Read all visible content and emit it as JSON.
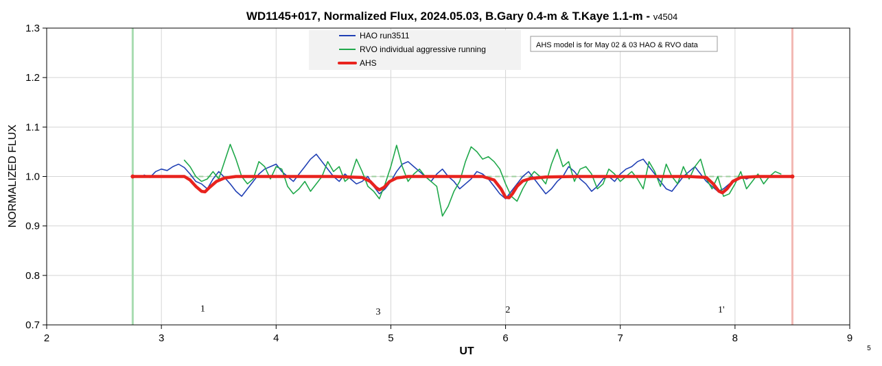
{
  "chart_data": {
    "type": "line",
    "title": "WD1145+017, Normalized Flux, 2024.05.03, B.Gary 0.4-m & T.Kaye 1.1-m - ",
    "title_version": "v4504",
    "xlabel": "UT",
    "ylabel": "NORMALIZED FLUX",
    "xlim": [
      2,
      9
    ],
    "ylim": [
      0.7,
      1.3
    ],
    "x_ticks": [
      "2",
      "3",
      "4",
      "5",
      "6",
      "7",
      "8",
      "9"
    ],
    "y_ticks": [
      "0.7",
      "0.8",
      "0.9",
      "1.0",
      "1.1",
      "1.2",
      "1.3"
    ],
    "grid": true,
    "legend_position": "top-center",
    "note": "AHS model is for May 02 & 03 HAO & RVO data",
    "corner_label": "5",
    "vertical_markers": [
      {
        "x": 2.75,
        "color": "#a8dcb0"
      },
      {
        "x": 8.5,
        "color": "#f2b8b4"
      }
    ],
    "reference_line": {
      "y": 1.0,
      "color": "#9ecf9e"
    },
    "annotations": [
      {
        "text": "1",
        "x": 3.36,
        "y": 0.727
      },
      {
        "text": "3",
        "x": 4.89,
        "y": 0.721
      },
      {
        "text": "2",
        "x": 6.02,
        "y": 0.725
      },
      {
        "text": "1'",
        "x": 7.88,
        "y": 0.725
      }
    ],
    "series": [
      {
        "name": "HAO run3511",
        "color": "#1f3fb4",
        "x": [
          2.85,
          2.9,
          2.95,
          3.0,
          3.05,
          3.1,
          3.15,
          3.2,
          3.25,
          3.3,
          3.35,
          3.4,
          3.45,
          3.5,
          3.55,
          3.6,
          3.65,
          3.7,
          3.75,
          3.8,
          3.85,
          3.9,
          3.95,
          4.0,
          4.05,
          4.1,
          4.15,
          4.2,
          4.25,
          4.3,
          4.35,
          4.4,
          4.45,
          4.5,
          4.55,
          4.6,
          4.65,
          4.7,
          4.75,
          4.8,
          4.85,
          4.9,
          4.95,
          5.0,
          5.05,
          5.1,
          5.15,
          5.2,
          5.25,
          5.3,
          5.35,
          5.4,
          5.45,
          5.5,
          5.55,
          5.6,
          5.65,
          5.7,
          5.75,
          5.8,
          5.85,
          5.9,
          5.95,
          6.0,
          6.05,
          6.1,
          6.15,
          6.2,
          6.25,
          6.3,
          6.35,
          6.4,
          6.45,
          6.5,
          6.55,
          6.6,
          6.65,
          6.7,
          6.75,
          6.8,
          6.85,
          6.9,
          6.95,
          7.0,
          7.05,
          7.1,
          7.15,
          7.2,
          7.25,
          7.3,
          7.35,
          7.4,
          7.45,
          7.5,
          7.55,
          7.6,
          7.65,
          7.7,
          7.75,
          7.8,
          7.85,
          7.9,
          7.95,
          8.0,
          8.05,
          8.1,
          8.15,
          8.2
        ],
        "values": [
          1.003,
          0.998,
          1.01,
          1.015,
          1.012,
          1.02,
          1.025,
          1.018,
          1.005,
          0.99,
          0.985,
          0.975,
          0.995,
          1.01,
          0.998,
          0.985,
          0.97,
          0.96,
          0.975,
          0.99,
          1.005,
          1.015,
          1.02,
          1.025,
          1.01,
          1.0,
          0.99,
          1.005,
          1.02,
          1.035,
          1.045,
          1.03,
          1.015,
          1.0,
          0.99,
          1.005,
          0.995,
          0.985,
          0.99,
          1.0,
          0.98,
          0.965,
          0.975,
          0.99,
          1.01,
          1.025,
          1.03,
          1.02,
          1.01,
          1.0,
          0.99,
          1.005,
          1.015,
          1.0,
          0.99,
          0.975,
          0.985,
          0.995,
          1.01,
          1.005,
          0.995,
          0.98,
          0.965,
          0.955,
          0.97,
          0.985,
          1.0,
          1.01,
          0.995,
          0.98,
          0.965,
          0.975,
          0.99,
          1.0,
          1.02,
          1.01,
          0.995,
          0.985,
          0.97,
          0.98,
          0.995,
          1.0,
          0.99,
          1.005,
          1.015,
          1.02,
          1.03,
          1.035,
          1.02,
          1.005,
          0.99,
          0.975,
          0.97,
          0.985,
          1.0,
          1.01,
          1.02,
          1.005,
          0.99,
          0.98,
          0.97,
          0.975,
          0.985,
          0.99,
          1.0,
          0.995,
          1.0,
          1.0
        ]
      },
      {
        "name": "RVO individual aggressive running",
        "color": "#1fa84a",
        "x": [
          3.2,
          3.25,
          3.3,
          3.35,
          3.4,
          3.45,
          3.5,
          3.55,
          3.6,
          3.65,
          3.7,
          3.75,
          3.8,
          3.85,
          3.9,
          3.95,
          4.0,
          4.05,
          4.1,
          4.15,
          4.2,
          4.25,
          4.3,
          4.35,
          4.4,
          4.45,
          4.5,
          4.55,
          4.6,
          4.65,
          4.7,
          4.75,
          4.8,
          4.85,
          4.9,
          4.95,
          5.0,
          5.05,
          5.1,
          5.15,
          5.2,
          5.25,
          5.3,
          5.35,
          5.4,
          5.45,
          5.5,
          5.55,
          5.6,
          5.65,
          5.7,
          5.75,
          5.8,
          5.85,
          5.9,
          5.95,
          6.0,
          6.05,
          6.1,
          6.15,
          6.2,
          6.25,
          6.3,
          6.35,
          6.4,
          6.45,
          6.5,
          6.55,
          6.6,
          6.65,
          6.7,
          6.75,
          6.8,
          6.85,
          6.9,
          6.95,
          7.0,
          7.05,
          7.1,
          7.15,
          7.2,
          7.25,
          7.3,
          7.35,
          7.4,
          7.45,
          7.5,
          7.55,
          7.6,
          7.65,
          7.7,
          7.75,
          7.8,
          7.85,
          7.9,
          7.95,
          8.0,
          8.05,
          8.1,
          8.15,
          8.2,
          8.25,
          8.3,
          8.35,
          8.4
        ],
        "values": [
          1.033,
          1.02,
          1.0,
          0.99,
          0.995,
          1.01,
          0.995,
          1.03,
          1.065,
          1.035,
          1.0,
          0.985,
          0.995,
          1.03,
          1.02,
          0.995,
          1.02,
          1.015,
          0.98,
          0.965,
          0.975,
          0.99,
          0.97,
          0.985,
          1.0,
          1.03,
          1.01,
          1.02,
          0.99,
          1.0,
          1.035,
          1.01,
          0.98,
          0.97,
          0.955,
          0.985,
          1.02,
          1.063,
          1.02,
          0.99,
          1.005,
          1.015,
          1.0,
          0.99,
          0.98,
          0.92,
          0.94,
          0.97,
          0.99,
          1.03,
          1.06,
          1.05,
          1.035,
          1.04,
          1.03,
          1.015,
          0.985,
          0.96,
          0.95,
          0.975,
          0.995,
          1.01,
          1.0,
          0.985,
          1.025,
          1.055,
          1.02,
          1.03,
          0.99,
          1.015,
          1.02,
          1.005,
          0.975,
          0.985,
          1.015,
          1.005,
          0.99,
          1.0,
          1.01,
          0.995,
          0.975,
          1.03,
          1.01,
          0.98,
          1.025,
          1.0,
          0.985,
          1.02,
          0.995,
          1.02,
          1.035,
          0.995,
          0.975,
          1.0,
          0.96,
          0.965,
          0.985,
          1.01,
          0.975,
          0.99,
          1.005,
          0.985,
          1.0,
          1.01,
          1.005
        ]
      },
      {
        "name": "AHS",
        "color": "#e8231e",
        "x": [
          2.75,
          3.2,
          3.25,
          3.3,
          3.35,
          3.38,
          3.42,
          3.48,
          3.55,
          3.65,
          3.8,
          4.0,
          4.5,
          4.75,
          4.82,
          4.87,
          4.9,
          4.94,
          4.99,
          5.05,
          5.15,
          5.4,
          5.8,
          5.9,
          5.96,
          6.0,
          6.03,
          6.06,
          6.1,
          6.15,
          6.22,
          6.35,
          6.6,
          7.0,
          7.6,
          7.75,
          7.81,
          7.86,
          7.89,
          7.93,
          7.98,
          8.05,
          8.2,
          8.5
        ],
        "values": [
          1.0,
          1.0,
          0.993,
          0.98,
          0.97,
          0.969,
          0.978,
          0.99,
          0.997,
          1.0,
          1.0,
          1.0,
          1.0,
          0.998,
          0.99,
          0.978,
          0.973,
          0.978,
          0.99,
          0.997,
          1.0,
          1.0,
          1.0,
          0.993,
          0.975,
          0.958,
          0.957,
          0.965,
          0.98,
          0.991,
          0.996,
          0.999,
          1.0,
          1.0,
          1.0,
          0.998,
          0.985,
          0.97,
          0.967,
          0.975,
          0.99,
          0.998,
          1.0,
          1.0
        ]
      }
    ]
  }
}
